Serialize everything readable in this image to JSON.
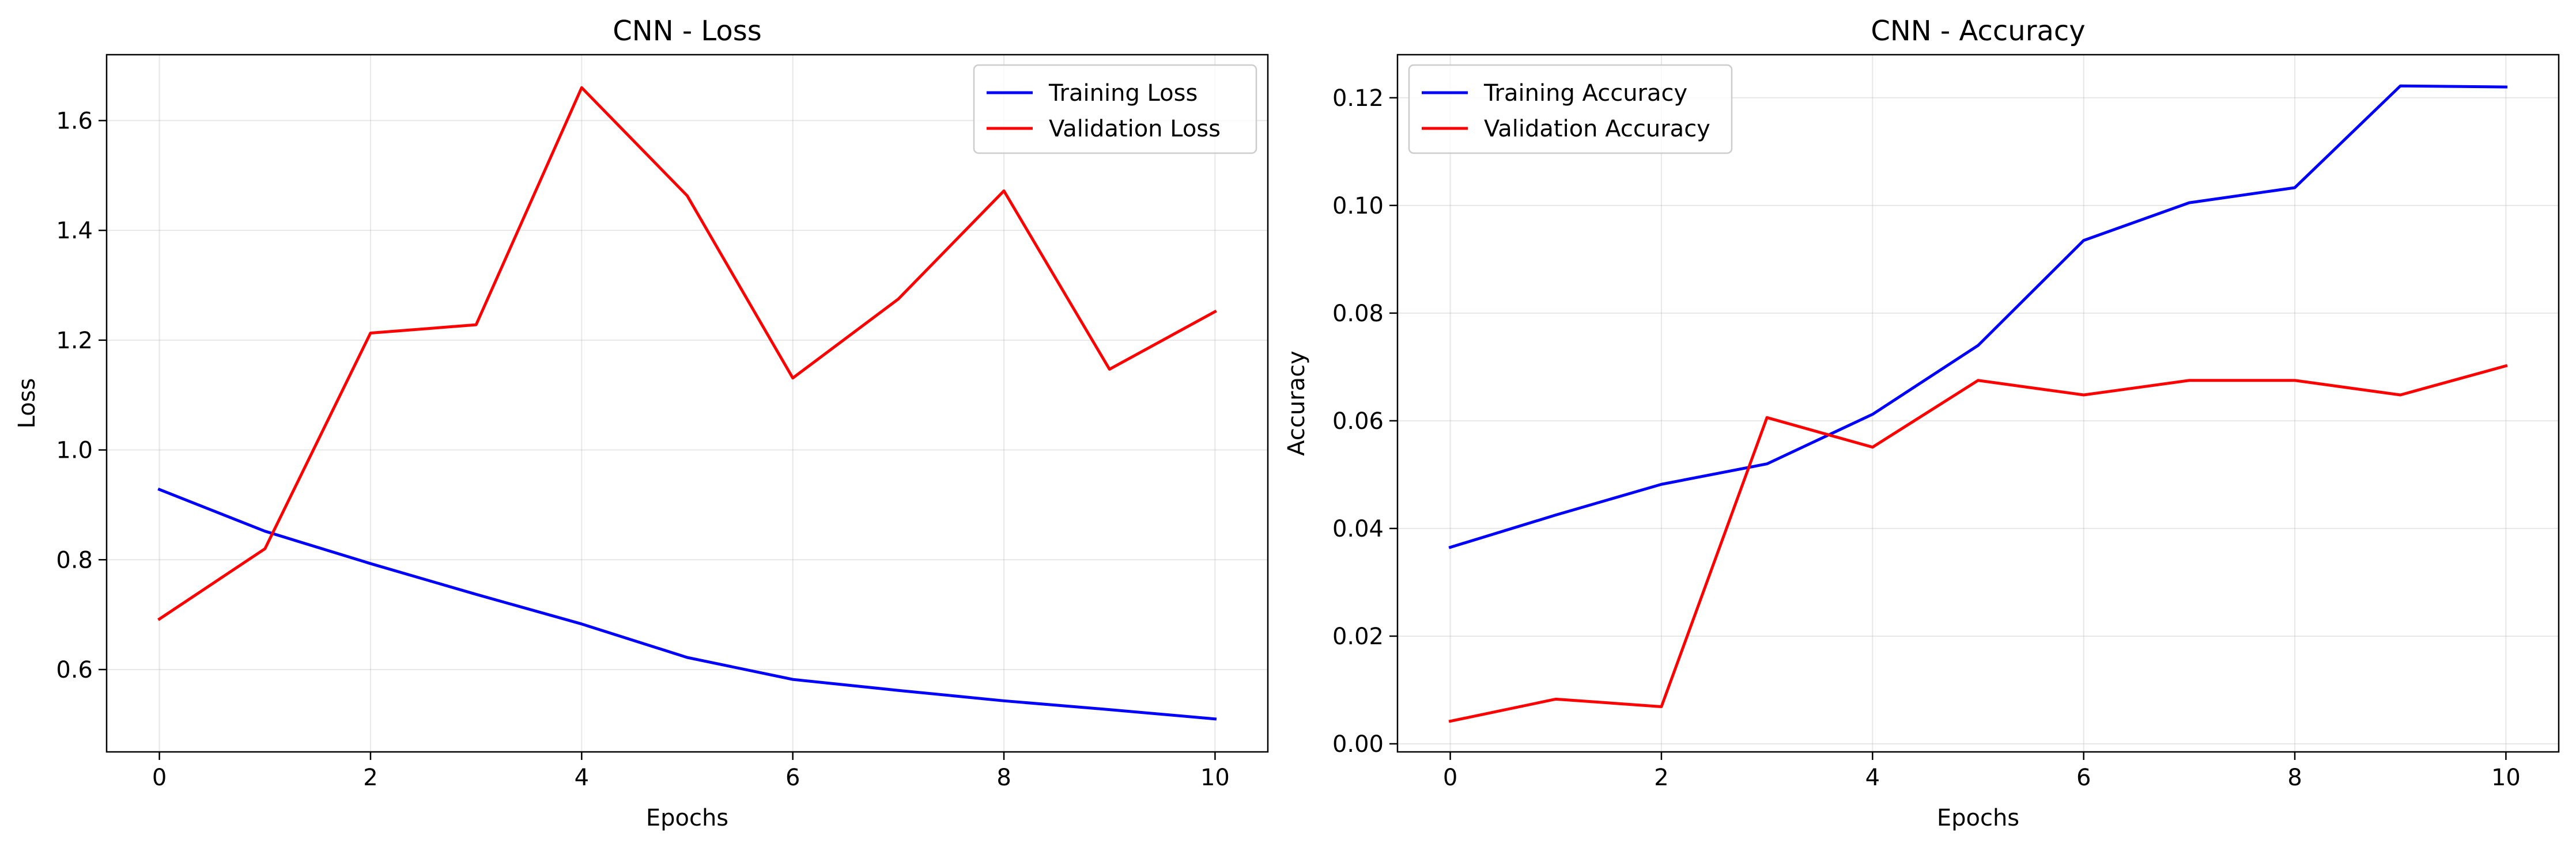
{
  "chart_data": [
    {
      "type": "line",
      "title": "CNN - Loss",
      "xlabel": "Epochs",
      "ylabel": "Loss",
      "x": [
        0,
        1,
        2,
        3,
        4,
        5,
        6,
        7,
        8,
        9,
        10
      ],
      "xlim": [
        -0.5,
        10.5
      ],
      "ylim": [
        0.45,
        1.72
      ],
      "xticks": [
        0,
        2,
        4,
        6,
        8,
        10
      ],
      "xtick_labels": [
        "0",
        "2",
        "4",
        "6",
        "8",
        "10"
      ],
      "yticks": [
        0.6,
        0.8,
        1.0,
        1.2,
        1.4,
        1.6
      ],
      "ytick_labels": [
        "0.6",
        "0.8",
        "1.0",
        "1.2",
        "1.4",
        "1.6"
      ],
      "grid": true,
      "legend_position": "upper right",
      "series": [
        {
          "name": "Training Loss",
          "color": "#0000ff",
          "values": [
            0.928,
            0.852,
            0.793,
            0.737,
            0.683,
            0.622,
            0.582,
            0.562,
            0.543,
            0.527,
            0.51
          ]
        },
        {
          "name": "Validation Loss",
          "color": "#ff0000",
          "values": [
            0.692,
            0.82,
            1.213,
            1.228,
            1.66,
            1.463,
            1.131,
            1.275,
            1.472,
            1.147,
            1.252
          ]
        }
      ]
    },
    {
      "type": "line",
      "title": "CNN - Accuracy",
      "xlabel": "Epochs",
      "ylabel": "Accuracy",
      "x": [
        0,
        1,
        2,
        3,
        4,
        5,
        6,
        7,
        8,
        9,
        10
      ],
      "xlim": [
        -0.5,
        10.5
      ],
      "ylim": [
        -0.0015,
        0.128
      ],
      "xticks": [
        0,
        2,
        4,
        6,
        8,
        10
      ],
      "xtick_labels": [
        "0",
        "2",
        "4",
        "6",
        "8",
        "10"
      ],
      "yticks": [
        0.0,
        0.02,
        0.04,
        0.06,
        0.08,
        0.1,
        0.12
      ],
      "ytick_labels": [
        "0.00",
        "0.02",
        "0.04",
        "0.06",
        "0.08",
        "0.10",
        "0.12"
      ],
      "grid": true,
      "legend_position": "upper left",
      "series": [
        {
          "name": "Training Accuracy",
          "color": "#0000ff",
          "values": [
            0.0365,
            0.0425,
            0.0482,
            0.052,
            0.0612,
            0.074,
            0.0935,
            0.1005,
            0.1033,
            0.1222,
            0.122
          ]
        },
        {
          "name": "Validation Accuracy",
          "color": "#ff0000",
          "values": [
            0.0042,
            0.0083,
            0.0069,
            0.0606,
            0.0551,
            0.0675,
            0.0648,
            0.0675,
            0.0675,
            0.0648,
            0.0702
          ]
        }
      ]
    }
  ]
}
